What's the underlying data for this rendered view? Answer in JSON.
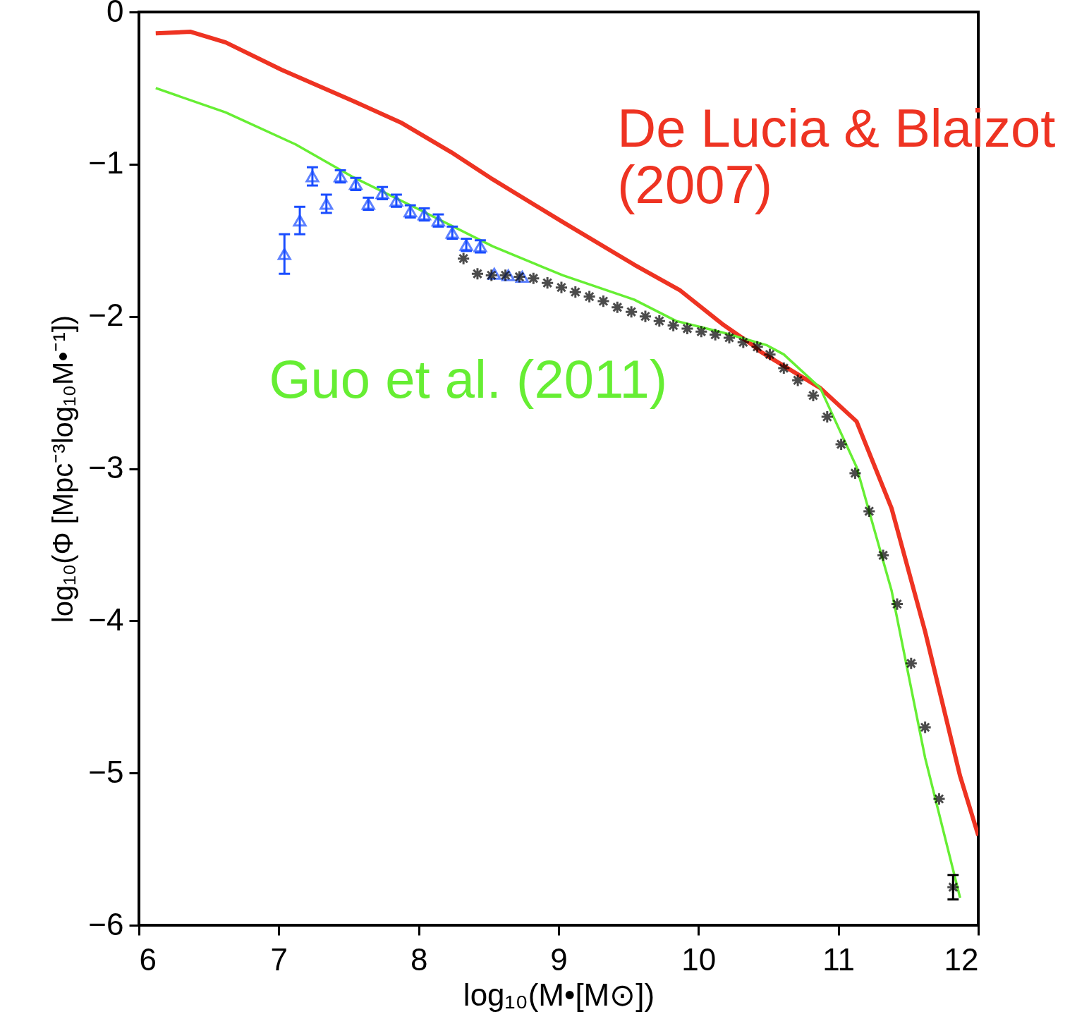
{
  "chart_data": {
    "type": "line",
    "xlabel": "log₁₀(M•[M⊙])",
    "ylabel": "log₁₀(Φ [Mpc⁻³log₁₀M•⁻¹])",
    "xlim": [
      6,
      12
    ],
    "ylim": [
      -6,
      0
    ],
    "xticks": [
      6,
      7,
      8,
      9,
      10,
      11,
      12
    ],
    "yticks": [
      -6,
      -5,
      -4,
      -3,
      -2,
      -1,
      0
    ],
    "grid": false,
    "series": [
      {
        "name": "De Lucia & Blaizot (2007)",
        "color": "#ee3322",
        "x": [
          6.12,
          6.37,
          6.62,
          7.02,
          7.52,
          7.88,
          8.23,
          8.53,
          9.03,
          9.54,
          9.87,
          10.17,
          10.39,
          10.44,
          10.87,
          11.13,
          11.38,
          11.62,
          11.87,
          12.0
        ],
        "values": [
          -0.14,
          -0.13,
          -0.2,
          -0.38,
          -0.58,
          -0.73,
          -0.92,
          -1.1,
          -1.38,
          -1.66,
          -1.83,
          -2.05,
          -2.19,
          -2.23,
          -2.47,
          -2.69,
          -3.26,
          -4.07,
          -5.02,
          -5.41
        ]
      },
      {
        "name": "Guo et al. (2011)",
        "color": "#66ee33",
        "x": [
          6.12,
          6.62,
          7.12,
          7.52,
          8.03,
          8.53,
          9.03,
          9.54,
          9.84,
          10.19,
          10.49,
          10.61,
          10.87,
          11.13,
          11.38,
          11.62,
          11.87
        ],
        "values": [
          -0.5,
          -0.66,
          -0.87,
          -1.08,
          -1.31,
          -1.54,
          -1.73,
          -1.89,
          -2.03,
          -2.11,
          -2.19,
          -2.25,
          -2.47,
          -2.99,
          -3.8,
          -4.9,
          -5.82
        ]
      },
      {
        "type": "scatter",
        "marker": "triangle",
        "color": "#1a4dff",
        "x": [
          7.04,
          7.15,
          7.24,
          7.34,
          7.44,
          7.55,
          7.64,
          7.74,
          7.84,
          7.94,
          8.04,
          8.14,
          8.24,
          8.34,
          8.44,
          8.54,
          8.64,
          8.74
        ],
        "values": [
          -1.59,
          -1.37,
          -1.08,
          -1.26,
          -1.08,
          -1.13,
          -1.26,
          -1.19,
          -1.24,
          -1.31,
          -1.33,
          -1.37,
          -1.45,
          -1.53,
          -1.54,
          -1.72,
          -1.73,
          -1.74
        ],
        "errors": [
          0.13,
          0.09,
          0.06,
          0.06,
          0.04,
          0.04,
          0.04,
          0.04,
          0.04,
          0.04,
          0.04,
          0.04,
          0.04,
          0.04,
          0.04,
          null,
          null,
          null
        ]
      },
      {
        "type": "scatter",
        "marker": "cross",
        "color": "#000000",
        "x": [
          8.32,
          8.42,
          8.52,
          8.62,
          8.72,
          8.82,
          8.92,
          9.02,
          9.12,
          9.22,
          9.32,
          9.42,
          9.52,
          9.62,
          9.72,
          9.82,
          9.92,
          10.02,
          10.12,
          10.22,
          10.32,
          10.42,
          10.51,
          10.61,
          10.71,
          10.82,
          10.92,
          11.02,
          11.12,
          11.22,
          11.32,
          11.42,
          11.52,
          11.62,
          11.72,
          11.82
        ],
        "values": [
          -1.62,
          -1.72,
          -1.73,
          -1.73,
          -1.74,
          -1.75,
          -1.78,
          -1.81,
          -1.84,
          -1.87,
          -1.9,
          -1.94,
          -1.97,
          -2.0,
          -2.03,
          -2.06,
          -2.08,
          -2.1,
          -2.12,
          -2.14,
          -2.17,
          -2.2,
          -2.25,
          -2.34,
          -2.42,
          -2.52,
          -2.66,
          -2.84,
          -3.03,
          -3.28,
          -3.57,
          -3.89,
          -4.28,
          -4.7,
          -5.17,
          -5.75
        ],
        "errors": [
          null,
          null,
          null,
          null,
          null,
          null,
          null,
          null,
          null,
          null,
          null,
          null,
          null,
          null,
          null,
          null,
          null,
          null,
          null,
          null,
          null,
          null,
          null,
          null,
          null,
          null,
          null,
          null,
          null,
          null,
          null,
          null,
          null,
          null,
          null,
          0.08
        ]
      }
    ]
  }
}
